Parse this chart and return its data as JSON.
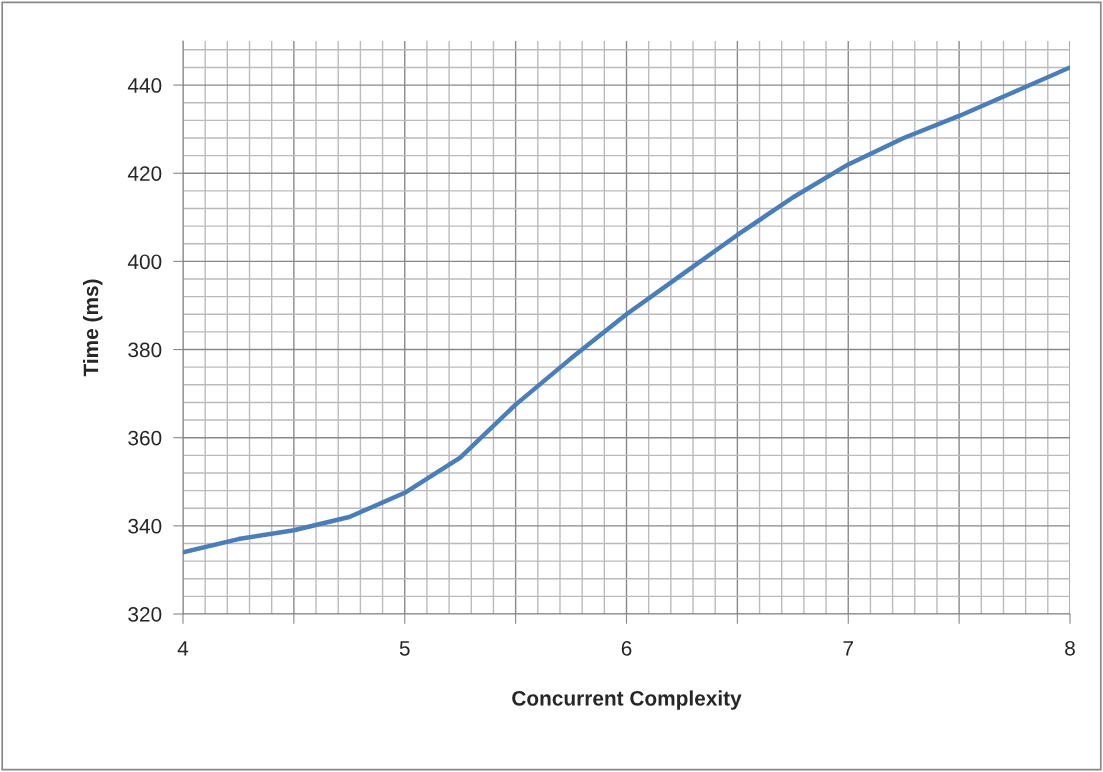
{
  "chart_data": {
    "type": "line",
    "xlabel": "Concurrent Complexity",
    "ylabel": "Time (ms)",
    "x": [
      4,
      4.25,
      4.5,
      4.75,
      5,
      5.25,
      5.5,
      5.75,
      6,
      6.25,
      6.5,
      6.75,
      7,
      7.25,
      7.5,
      7.75,
      8
    ],
    "series": [
      {
        "color": "#4a7ebb",
        "values": [
          334,
          337,
          339,
          342,
          347.5,
          355.5,
          367.5,
          378,
          388,
          397,
          406,
          414.5,
          422,
          428,
          433,
          438.5,
          444
        ]
      }
    ],
    "xlim": [
      4,
      8
    ],
    "xticks": [
      4,
      {
        "value": 4.5,
        "label": null
      },
      5,
      {
        "value": 5.5,
        "label": null
      },
      6,
      {
        "value": 6.5,
        "label": null
      },
      7,
      {
        "value": 7.5,
        "label": null
      },
      8
    ],
    "ylim": [
      320,
      450
    ],
    "yticks": [
      320,
      340,
      360,
      380,
      400,
      420,
      440
    ],
    "grid": true,
    "marker": "none",
    "line_style": "solid"
  }
}
